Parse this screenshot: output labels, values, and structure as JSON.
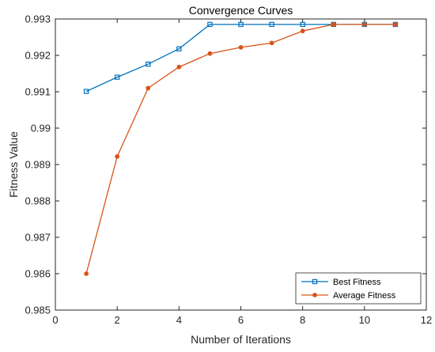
{
  "chart_data": {
    "type": "line",
    "title": "Convergence Curves",
    "xlabel": "Number of Iterations",
    "ylabel": "Fitness Value",
    "xlim": [
      0,
      12
    ],
    "ylim": [
      0.985,
      0.993
    ],
    "x_ticks": [
      "0",
      "2",
      "4",
      "6",
      "8",
      "10",
      "12"
    ],
    "y_ticks": [
      "0.985",
      "0.986",
      "0.987",
      "0.988",
      "0.989",
      "0.99",
      "0.991",
      "0.992",
      "0.993"
    ],
    "grid": false,
    "legend_position": "bottom-right",
    "x": [
      1,
      2,
      3,
      4,
      5,
      6,
      7,
      8,
      9,
      10,
      11
    ],
    "series": [
      {
        "name": "Best Fitness",
        "color": "#0072BD",
        "marker": "square",
        "values": [
          0.99101,
          0.9914,
          0.99176,
          0.99218,
          0.99285,
          0.99285,
          0.99285,
          0.99285,
          0.99285,
          0.99285,
          0.99285
        ]
      },
      {
        "name": "Average Fitness",
        "color": "#D95319",
        "marker": "circle",
        "values": [
          0.986,
          0.98922,
          0.9911,
          0.99168,
          0.99205,
          0.99222,
          0.99234,
          0.99267,
          0.99285,
          0.99285,
          0.99285
        ]
      }
    ]
  }
}
